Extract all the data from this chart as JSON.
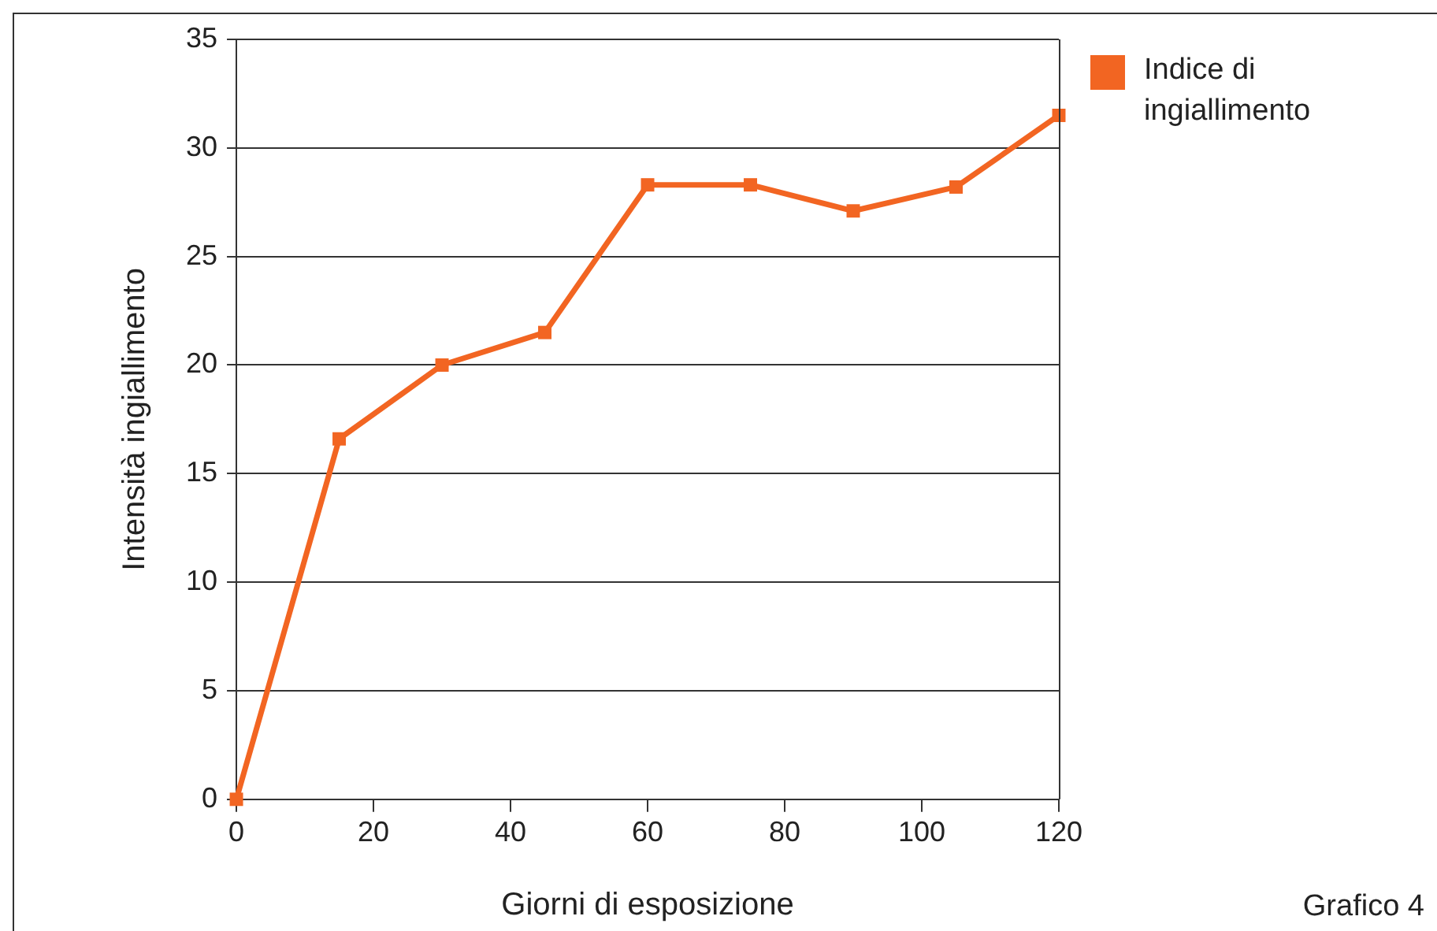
{
  "chart_data": {
    "type": "line",
    "xlabel": "Giorni di esposizione",
    "ylabel": "Intensità ingiallimento",
    "x": [
      0,
      15,
      30,
      45,
      60,
      75,
      90,
      105,
      120
    ],
    "series": [
      {
        "name": "Indice di ingiallimento",
        "color": "#f26522",
        "values": [
          0,
          16.6,
          20,
          21.5,
          28.3,
          28.3,
          27.1,
          28.2,
          31.5
        ]
      }
    ],
    "xlim": [
      0,
      120
    ],
    "xticks": [
      0,
      20,
      40,
      60,
      80,
      100,
      120
    ],
    "ylim": [
      0,
      35
    ],
    "yticks": [
      0,
      5,
      10,
      15,
      20,
      25,
      30,
      35
    ],
    "grid": "y",
    "legend": "top right",
    "marker": "square",
    "line_style": "solid",
    "annotations": [
      "Grafico 4"
    ]
  }
}
